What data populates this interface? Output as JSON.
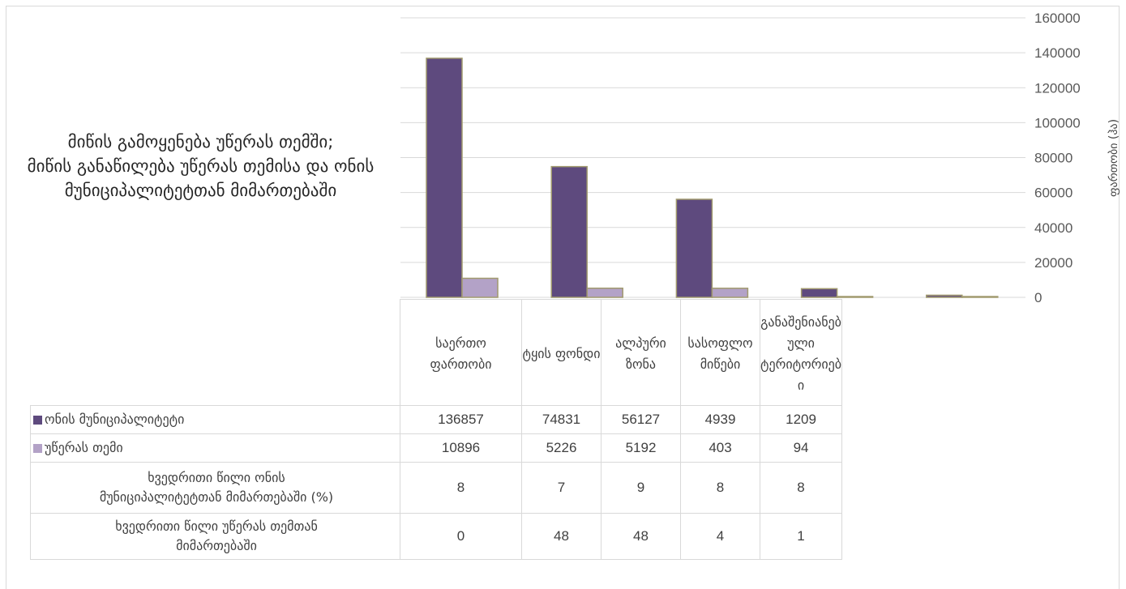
{
  "chart_data": {
    "type": "bar",
    "title": "მიწის გამოყენება უწერას თემში;\nმიწის განაწილება უწერას თემისა და ონის მუნიციპალიტეტთან მიმართებაში",
    "ylabel": "ფართობი (ჰა)",
    "ylim": [
      0,
      160000
    ],
    "yticks": [
      "0",
      "20000",
      "40000",
      "60000",
      "80000",
      "100000",
      "120000",
      "140000",
      "160000"
    ],
    "categories": [
      "საერთო ფართობი",
      "ტყის ფონდი",
      "ალპური ზონა",
      "სასოფლო მიწები",
      "განაშენიანებული ტერიტორიები"
    ],
    "category_labels": [
      "საერთო\nფართობი",
      "ტყის ფონდი",
      "ალპური\nზონა",
      "სასოფლო\nმიწები",
      "განაშენიანებ\nული\nტერიტორიებ\nი"
    ],
    "series": [
      {
        "name": "ონის მუნიციპალიტეტი",
        "color": "#5e4a7e",
        "values": [
          136857,
          74831,
          56127,
          4939,
          1209
        ],
        "labels": [
          "136857",
          "74831",
          "56127",
          "4939",
          "1209"
        ]
      },
      {
        "name": "უწერას თემი",
        "color": "#b3a2c7",
        "values": [
          10896,
          5226,
          5192,
          403,
          94
        ],
        "labels": [
          "10896",
          "5226",
          "5192",
          "403",
          "94"
        ]
      }
    ],
    "extra_rows": [
      {
        "label": "ხვედრითი წილი ონის\nმუნიციპალიტეტთან მიმართებაში (%)",
        "values": [
          "8",
          "7",
          "9",
          "8",
          "8"
        ]
      },
      {
        "label": "ხვედრითი წილი უწერას თემთან\nმიმართებაში",
        "values": [
          "0",
          "48",
          "48",
          "4",
          "1"
        ]
      }
    ],
    "grid": true,
    "legend": "data-table"
  }
}
